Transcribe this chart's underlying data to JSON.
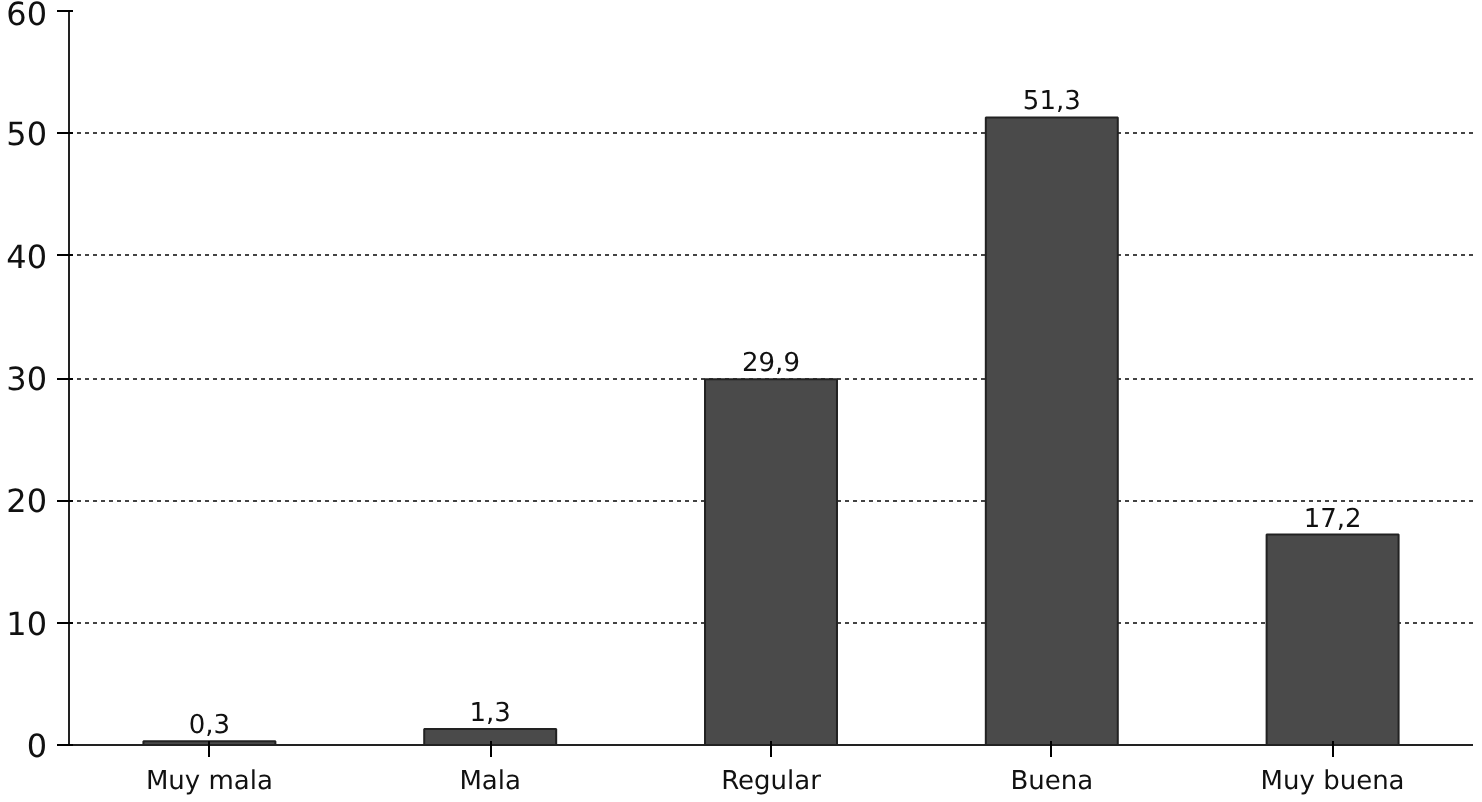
{
  "chart_data": {
    "type": "bar",
    "categories": [
      "Muy mala",
      "Mala",
      "Regular",
      "Buena",
      "Muy buena"
    ],
    "values": [
      0.3,
      1.3,
      29.9,
      51.3,
      17.2
    ],
    "value_labels": [
      "0,3",
      "1,3",
      "29,9",
      "51,3",
      "17,2"
    ],
    "color": "#4a4a4a",
    "ylim": [
      0,
      60
    ],
    "yticks": [
      0,
      10,
      20,
      30,
      40,
      50,
      60
    ],
    "grid": "y"
  }
}
